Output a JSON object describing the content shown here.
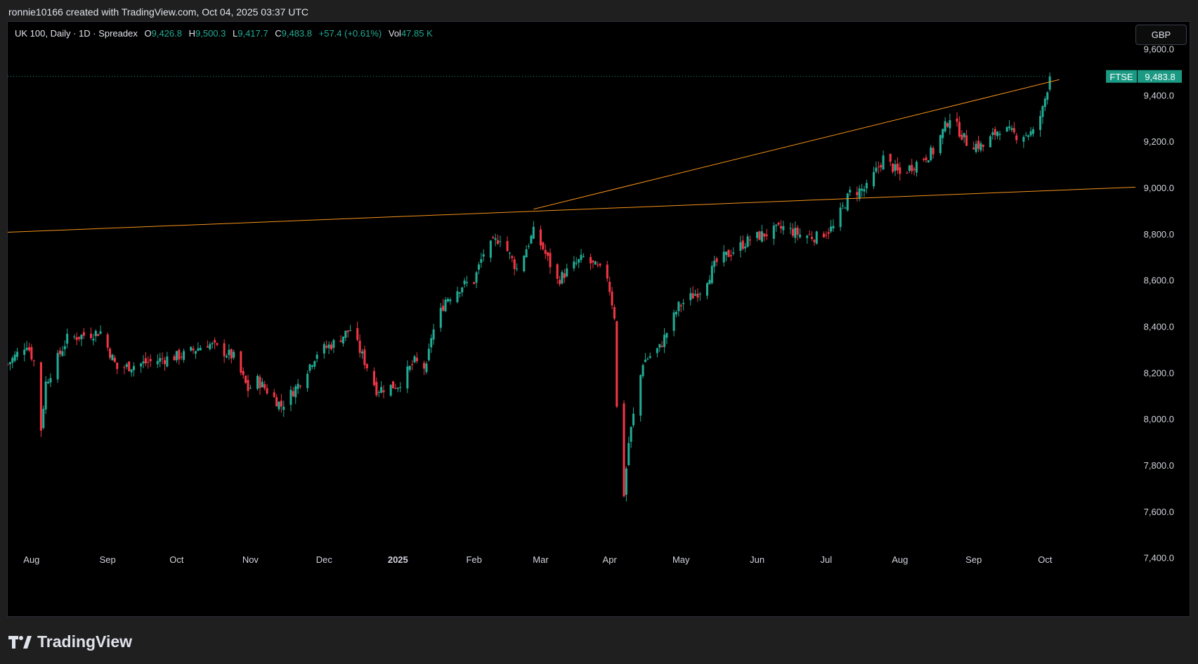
{
  "header": {
    "created_by": "ronnie10166 created with TradingView.com, Oct 04, 2025 03:37 UTC"
  },
  "legend": {
    "symbol": "UK 100, Daily · 1D · Spreadex",
    "open_label": "O",
    "open_value": "9,426.8",
    "high_label": "H",
    "high_value": "9,500.3",
    "low_label": "L",
    "low_value": "9,417.7",
    "close_label": "C",
    "close_value": "9,483.8",
    "change": "+57.4 (+0.61%)",
    "vol_label": "Vol",
    "vol_value": "47.85 K"
  },
  "currency_button": "GBP",
  "price_tag": {
    "ticker": "FTSE",
    "price": "9,483.8",
    "color": "#1a9983"
  },
  "brand": {
    "name": "TradingView"
  },
  "colors": {
    "up": "#22ab94",
    "down": "#f23645",
    "trendline": "#f7931a",
    "axis_text": "#d1d4dc"
  },
  "chart_data": {
    "type": "candlestick",
    "title": "UK 100, Daily · 1D · Spreadex",
    "y_ticks": [
      7400,
      7600,
      7800,
      8000,
      8200,
      8400,
      8600,
      8800,
      9000,
      9200,
      9400,
      9600
    ],
    "y_tick_labels": [
      "7,400.0",
      "7,600.0",
      "7,800.0",
      "8,000.0",
      "8,200.0",
      "8,400.0",
      "8,600.0",
      "8,800.0",
      "9,000.0",
      "9,200.0",
      "9,400.0",
      "9,600.0"
    ],
    "ylim": [
      7150,
      9720
    ],
    "x_labels": [
      {
        "label": "Aug",
        "date": "2024-08-01",
        "bold": false
      },
      {
        "label": "Sep",
        "date": "2024-09-02",
        "bold": false
      },
      {
        "label": "Oct",
        "date": "2024-10-01",
        "bold": false
      },
      {
        "label": "Nov",
        "date": "2024-11-01",
        "bold": false
      },
      {
        "label": "Dec",
        "date": "2024-12-02",
        "bold": false
      },
      {
        "label": "2025",
        "date": "2025-01-02",
        "bold": true
      },
      {
        "label": "Feb",
        "date": "2025-02-03",
        "bold": false
      },
      {
        "label": "Mar",
        "date": "2025-03-03",
        "bold": false
      },
      {
        "label": "Apr",
        "date": "2025-04-01",
        "bold": false
      },
      {
        "label": "May",
        "date": "2025-05-01",
        "bold": false
      },
      {
        "label": "Jun",
        "date": "2025-06-02",
        "bold": false
      },
      {
        "label": "Jul",
        "date": "2025-07-01",
        "bold": false
      },
      {
        "label": "Aug",
        "date": "2025-08-01",
        "bold": false
      },
      {
        "label": "Sep",
        "date": "2025-09-01",
        "bold": false
      },
      {
        "label": "Oct",
        "date": "2025-10-01",
        "bold": false
      }
    ],
    "xlim": [
      "2024-07-22",
      "2025-11-08"
    ],
    "last_price": 9483.8,
    "trendlines": [
      {
        "from": {
          "date": "2024-07-22",
          "price": 8810
        },
        "to": {
          "date": "2025-11-08",
          "price": 9005
        }
      },
      {
        "from": {
          "date": "2025-02-28",
          "price": 8910
        },
        "to": {
          "date": "2025-10-07",
          "price": 9470
        }
      }
    ],
    "close_anchors": [
      {
        "date": "2024-07-22",
        "close": 8240
      },
      {
        "date": "2024-07-30",
        "close": 8330
      },
      {
        "date": "2024-08-02",
        "close": 8250
      },
      {
        "date": "2024-08-05",
        "close": 7960
      },
      {
        "date": "2024-08-07",
        "close": 8160
      },
      {
        "date": "2024-08-16",
        "close": 8350
      },
      {
        "date": "2024-08-30",
        "close": 8380
      },
      {
        "date": "2024-09-06",
        "close": 8220
      },
      {
        "date": "2024-09-20",
        "close": 8250
      },
      {
        "date": "2024-10-04",
        "close": 8280
      },
      {
        "date": "2024-10-14",
        "close": 8330
      },
      {
        "date": "2024-10-25",
        "close": 8270
      },
      {
        "date": "2024-10-31",
        "close": 8130
      },
      {
        "date": "2024-11-04",
        "close": 8170
      },
      {
        "date": "2024-11-14",
        "close": 8060
      },
      {
        "date": "2024-11-21",
        "close": 8150
      },
      {
        "date": "2024-11-29",
        "close": 8290
      },
      {
        "date": "2024-12-06",
        "close": 8330
      },
      {
        "date": "2024-12-13",
        "close": 8390
      },
      {
        "date": "2024-12-20",
        "close": 8230
      },
      {
        "date": "2024-12-24",
        "close": 8130
      },
      {
        "date": "2025-01-02",
        "close": 8150
      },
      {
        "date": "2025-01-09",
        "close": 8250
      },
      {
        "date": "2025-01-14",
        "close": 8220
      },
      {
        "date": "2025-01-16",
        "close": 8360
      },
      {
        "date": "2025-01-22",
        "close": 8520
      },
      {
        "date": "2025-01-29",
        "close": 8580
      },
      {
        "date": "2025-02-03",
        "close": 8600
      },
      {
        "date": "2025-02-07",
        "close": 8720
      },
      {
        "date": "2025-02-14",
        "close": 8790
      },
      {
        "date": "2025-02-21",
        "close": 8650
      },
      {
        "date": "2025-02-28",
        "close": 8810
      },
      {
        "date": "2025-03-04",
        "close": 8740
      },
      {
        "date": "2025-03-10",
        "close": 8600
      },
      {
        "date": "2025-03-14",
        "close": 8640
      },
      {
        "date": "2025-03-21",
        "close": 8700
      },
      {
        "date": "2025-03-31",
        "close": 8620
      },
      {
        "date": "2025-04-03",
        "close": 8450
      },
      {
        "date": "2025-04-04",
        "close": 8050
      },
      {
        "date": "2025-04-07",
        "close": 7680
      },
      {
        "date": "2025-04-09",
        "close": 7900
      },
      {
        "date": "2025-04-15",
        "close": 8250
      },
      {
        "date": "2025-04-22",
        "close": 8310
      },
      {
        "date": "2025-04-30",
        "close": 8490
      },
      {
        "date": "2025-05-09",
        "close": 8560
      },
      {
        "date": "2025-05-16",
        "close": 8680
      },
      {
        "date": "2025-05-30",
        "close": 8780
      },
      {
        "date": "2025-06-13",
        "close": 8830
      },
      {
        "date": "2025-06-20",
        "close": 8800
      },
      {
        "date": "2025-06-27",
        "close": 8790
      },
      {
        "date": "2025-07-04",
        "close": 8830
      },
      {
        "date": "2025-07-11",
        "close": 8980
      },
      {
        "date": "2025-07-18",
        "close": 9000
      },
      {
        "date": "2025-07-25",
        "close": 9130
      },
      {
        "date": "2025-08-01",
        "close": 9060
      },
      {
        "date": "2025-08-08",
        "close": 9110
      },
      {
        "date": "2025-08-15",
        "close": 9160
      },
      {
        "date": "2025-08-22",
        "close": 9310
      },
      {
        "date": "2025-08-29",
        "close": 9200
      },
      {
        "date": "2025-09-05",
        "close": 9180
      },
      {
        "date": "2025-09-12",
        "close": 9260
      },
      {
        "date": "2025-09-19",
        "close": 9230
      },
      {
        "date": "2025-09-26",
        "close": 9240
      },
      {
        "date": "2025-09-30",
        "close": 9340
      },
      {
        "date": "2025-10-03",
        "close": 9483.8
      }
    ]
  }
}
